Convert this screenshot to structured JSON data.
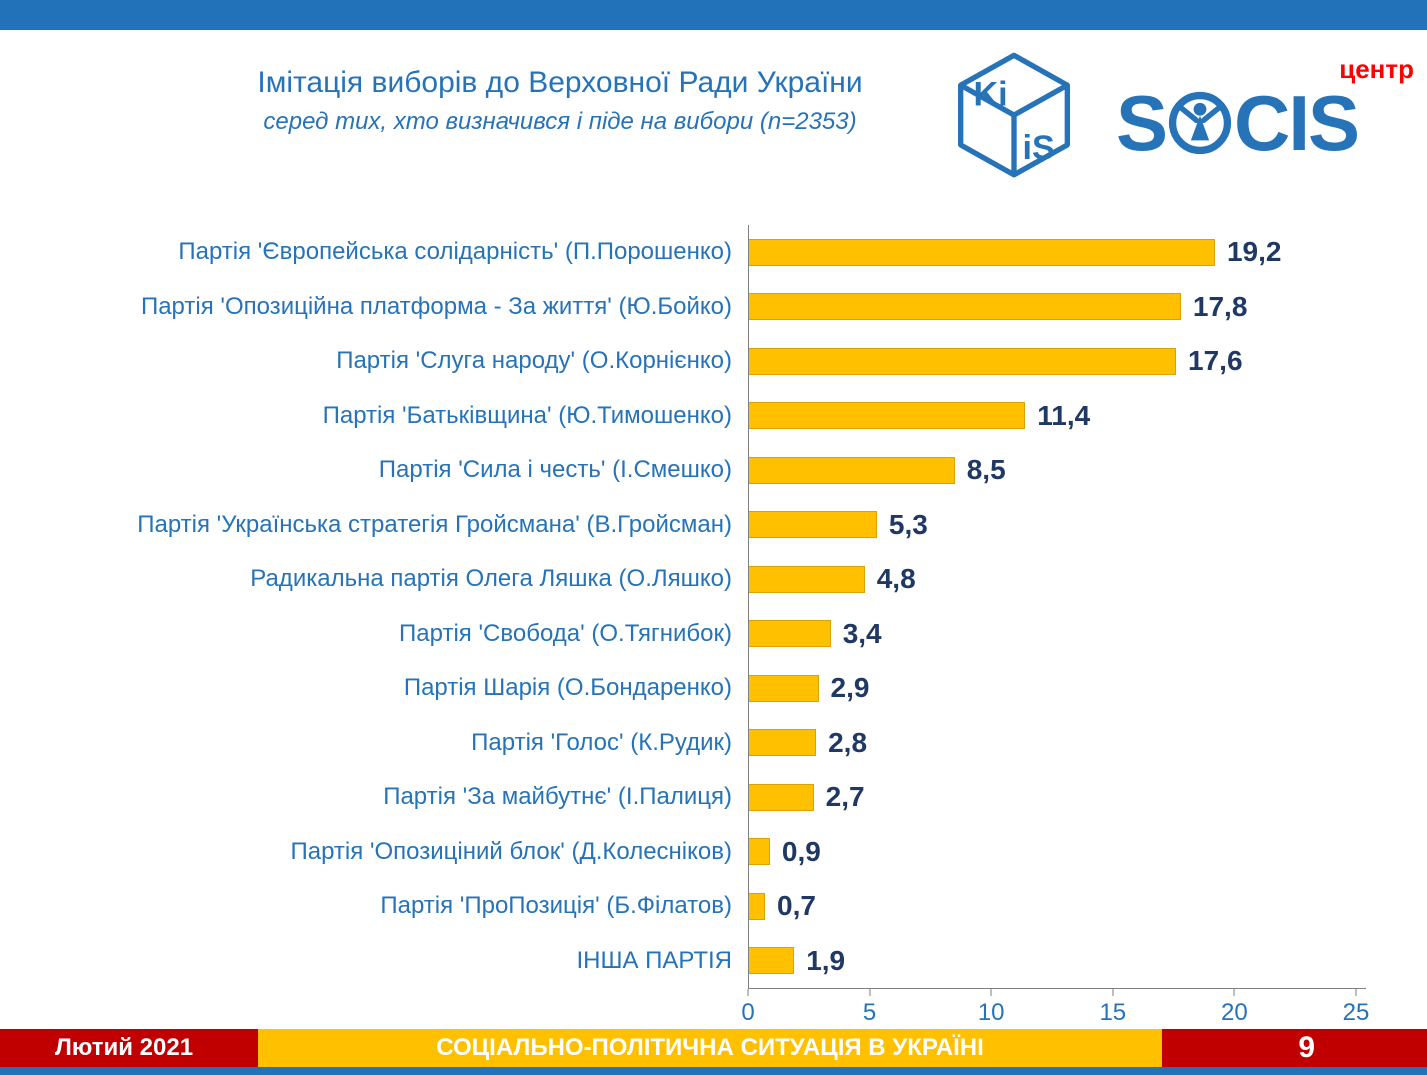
{
  "colors": {
    "accent_blue": "#2272B9",
    "text_blue": "#2673B8",
    "bar_gold": "#FFC000",
    "value_navy": "#203864",
    "footer_red": "#C00000",
    "socis_red": "#FF0000"
  },
  "chart_data": {
    "type": "bar",
    "orientation": "horizontal",
    "title": "Імітація виборів до Верховної Ради України",
    "subtitle": "серед тих, хто визначився і піде на вибори (n=2353)",
    "categories": [
      "Партія 'Європейська солідарність' (П.Порошенко)",
      "Партія 'Опозиційна платформа - За життя' (Ю.Бойко)",
      "Партія 'Слуга народу' (О.Корнієнко)",
      "Партія 'Батьківщина' (Ю.Тимошенко)",
      "Партія 'Сила і честь' (І.Смешко)",
      "Партія 'Українська стратегія Гройсмана' (В.Гройсман)",
      "Радикальна партія Олега Ляшка (О.Ляшко)",
      "Партія 'Свобода' (О.Тягнибок)",
      "Партія Шарія (О.Бондаренко)",
      "Партія 'Голос' (К.Рудик)",
      "Партія 'За майбутнє' (І.Палиця)",
      "Партія 'Опозиціний блок' (Д.Колесніков)",
      "Партія 'ПроПозиція' (Б.Філатов)",
      "ІНША ПАРТІЯ"
    ],
    "values": [
      19.2,
      17.8,
      17.6,
      11.4,
      8.5,
      5.3,
      4.8,
      3.4,
      2.9,
      2.8,
      2.7,
      0.9,
      0.7,
      1.9
    ],
    "value_labels": [
      "19,2",
      "17,8",
      "17,6",
      "11,4",
      "8,5",
      "5,3",
      "4,8",
      "3,4",
      "2,9",
      "2,8",
      "2,7",
      "0,9",
      "0,7",
      "1,9"
    ],
    "xlim": [
      0,
      25
    ],
    "x_ticks": [
      0,
      5,
      10,
      15,
      20,
      25
    ],
    "grid": false,
    "legend": false
  },
  "logos": {
    "kiis": {
      "top_text": "Ki",
      "front_text": "iS"
    },
    "socis": {
      "part1": "S",
      "part2": "CIS",
      "tag": "центр"
    }
  },
  "footer": {
    "date": "Лютий 2021",
    "title": "СОЦІАЛЬНО-ПОЛІТИЧНА СИТУАЦІЯ В УКРАЇНІ",
    "page_number": "9"
  }
}
